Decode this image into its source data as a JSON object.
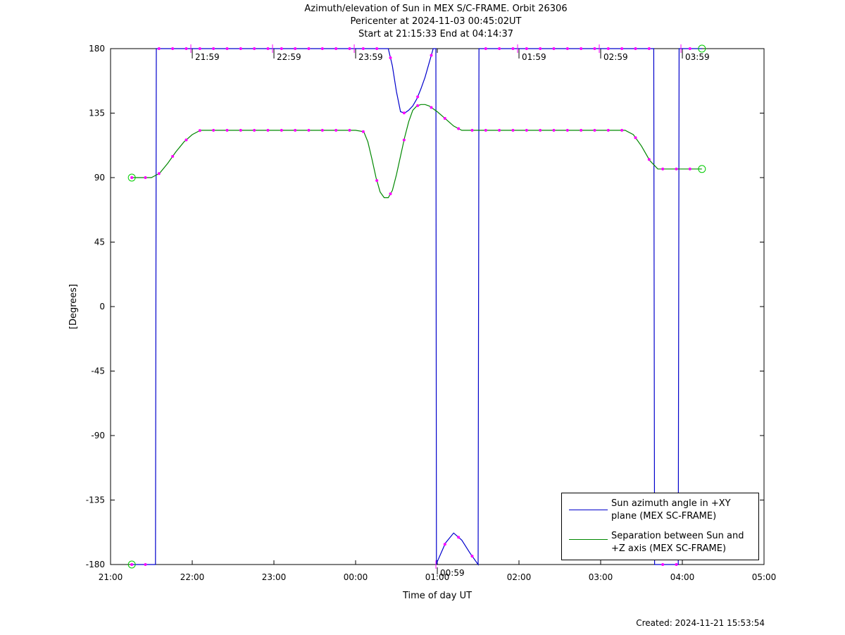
{
  "title_lines": [
    "Azimuth/elevation of Sun in MEX S/C-FRAME.  Orbit 26306",
    "Pericenter at 2024-11-03 00:45:02UT",
    "Start at 21:15:33 End at 04:14:37"
  ],
  "footer": "Created: 2024-11-21 15:53:54",
  "colors": {
    "azimuth": "#0000cc",
    "separation": "#008800",
    "markers": "#ff00ff",
    "axes": "#000000"
  },
  "legend": [
    {
      "series": "azimuth",
      "line1": "Sun azimuth angle in +XY",
      "line2": "plane (MEX SC-FRAME)"
    },
    {
      "series": "separation",
      "line1": "Separation between Sun and",
      "line2": "+Z axis (MEX SC-FRAME)"
    }
  ],
  "chart_data": {
    "type": "line",
    "xlabel": "Time of day UT",
    "ylabel": "[Degrees]",
    "xlim_hours": [
      21,
      29
    ],
    "ylim": [
      -180,
      180
    ],
    "x_ticks": [
      {
        "h": 21,
        "label": "21:00"
      },
      {
        "h": 22,
        "label": "22:00"
      },
      {
        "h": 23,
        "label": "23:00"
      },
      {
        "h": 24,
        "label": "00:00"
      },
      {
        "h": 25,
        "label": "01:00"
      },
      {
        "h": 26,
        "label": "02:00"
      },
      {
        "h": 27,
        "label": "03:00"
      },
      {
        "h": 28,
        "label": "04:00"
      },
      {
        "h": 29,
        "label": "05:00"
      }
    ],
    "y_ticks": [
      180,
      135,
      90,
      45,
      0,
      -45,
      -90,
      -135,
      -180
    ],
    "hour_marks": [
      {
        "h": 21.983,
        "label": "21:59",
        "y": 180
      },
      {
        "h": 22.983,
        "label": "22:59",
        "y": 180
      },
      {
        "h": 23.983,
        "label": "23:59",
        "y": 180
      },
      {
        "h": 24.983,
        "label": "00:59",
        "y": -180
      },
      {
        "h": 25.983,
        "label": "01:59",
        "y": 180
      },
      {
        "h": 26.983,
        "label": "02:59",
        "y": 180
      },
      {
        "h": 27.983,
        "label": "03:59",
        "y": 180
      }
    ],
    "series": [
      {
        "key": "azimuth",
        "name": "Sun azimuth angle in +XY plane (MEX SC-FRAME)",
        "x": [
          21.26,
          21.4,
          21.55,
          21.56,
          21.6,
          22.0,
          23.0,
          24.0,
          24.4,
          24.45,
          24.5,
          24.55,
          24.6,
          24.65,
          24.7,
          24.75,
          24.8,
          24.85,
          24.9,
          24.95,
          24.983,
          24.99,
          25.0,
          25.1,
          25.2,
          25.3,
          25.4,
          25.5,
          25.51,
          25.52,
          25.6,
          26.0,
          27.0,
          27.5,
          27.65,
          27.66,
          27.95,
          27.96,
          27.97,
          28.24
        ],
        "y": [
          -180,
          -180,
          -180,
          180,
          180,
          180,
          180,
          180,
          180,
          168,
          150,
          136,
          135,
          137,
          140,
          145,
          152,
          160,
          170,
          180,
          180,
          -180,
          -178,
          -165,
          -158,
          -163,
          -172,
          -180,
          180,
          180,
          180,
          180,
          180,
          180,
          180,
          -180,
          -180,
          180,
          180,
          180
        ]
      },
      {
        "key": "separation",
        "name": "Separation between Sun and +Z axis (MEX SC-FRAME)",
        "x": [
          21.26,
          21.4,
          21.5,
          21.6,
          21.7,
          21.8,
          21.9,
          22.0,
          22.1,
          22.5,
          23.0,
          23.5,
          24.0,
          24.1,
          24.15,
          24.2,
          24.25,
          24.3,
          24.35,
          24.4,
          24.45,
          24.5,
          24.55,
          24.6,
          24.65,
          24.7,
          24.75,
          24.8,
          24.85,
          24.9,
          24.95,
          25.0,
          25.1,
          25.2,
          25.3,
          25.5,
          26.0,
          27.0,
          27.3,
          27.4,
          27.5,
          27.6,
          27.7,
          28.0,
          28.24
        ],
        "y": [
          90,
          90,
          90,
          93,
          100,
          108,
          115,
          120,
          123,
          123,
          123,
          123,
          123,
          122,
          115,
          103,
          90,
          80,
          76,
          76,
          81,
          92,
          105,
          118,
          129,
          137,
          140,
          141,
          141,
          140,
          138,
          136,
          131,
          126,
          123,
          123,
          123,
          123,
          123,
          120,
          112,
          102,
          96,
          96,
          96
        ]
      }
    ]
  }
}
